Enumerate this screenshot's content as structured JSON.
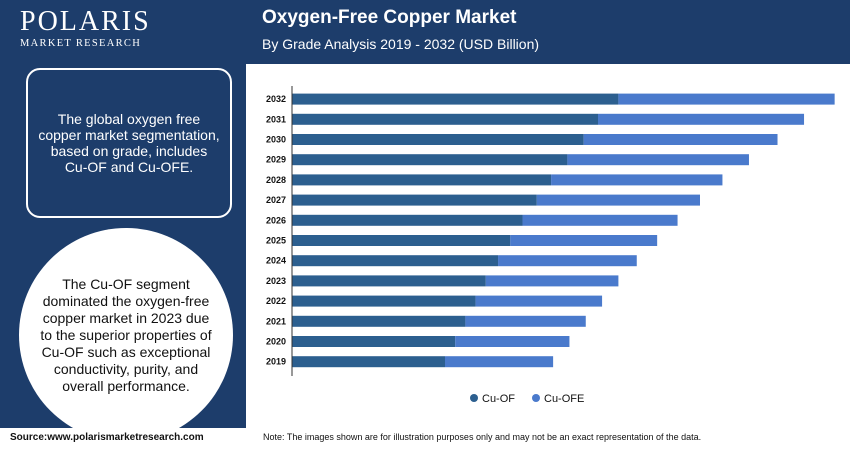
{
  "brand": {
    "name": "POLARIS",
    "tagline": "MARKET RESEARCH"
  },
  "header": {
    "title": "Oxygen-Free Copper Market",
    "subtitle": "By Grade Analysis 2019 - 2032 (USD Billion)"
  },
  "sidebar": {
    "box_text": "The global oxygen free copper market segmentation, based on grade, includes Cu-OF and Cu-OFE.",
    "circle_text": "The Cu-OF segment dominated the oxygen-free copper market in 2023 due to the superior properties of Cu-OF such as exceptional conductivity, purity, and overall performance."
  },
  "footer": {
    "source": "Source:www.polarismarketresearch.com",
    "note": "Note: The images shown are for illustration purposes only and may not be an exact representation of the data."
  },
  "colors": {
    "navy": "#1d3d6b",
    "cu_of": "#2c5f8f",
    "cu_ofe": "#4a7acc"
  },
  "chart_data": {
    "type": "bar",
    "orientation": "horizontal",
    "stacked": true,
    "categories": [
      "2032",
      "2031",
      "2030",
      "2029",
      "2028",
      "2027",
      "2026",
      "2025",
      "2024",
      "2023",
      "2022",
      "2021",
      "2020",
      "2019"
    ],
    "series": [
      {
        "name": "Cu-OF",
        "color": "#2c5f8f",
        "values": [
          16.0,
          15.0,
          14.3,
          13.5,
          12.7,
          12.0,
          11.3,
          10.7,
          10.1,
          9.5,
          9.0,
          8.5,
          8.0,
          7.5
        ]
      },
      {
        "name": "Cu-OFE",
        "color": "#4a7acc",
        "values": [
          10.6,
          10.1,
          9.5,
          8.9,
          8.4,
          8.0,
          7.6,
          7.2,
          6.8,
          6.5,
          6.2,
          5.9,
          5.6,
          5.3
        ]
      }
    ],
    "legend": "bottom-center",
    "grid": false
  }
}
